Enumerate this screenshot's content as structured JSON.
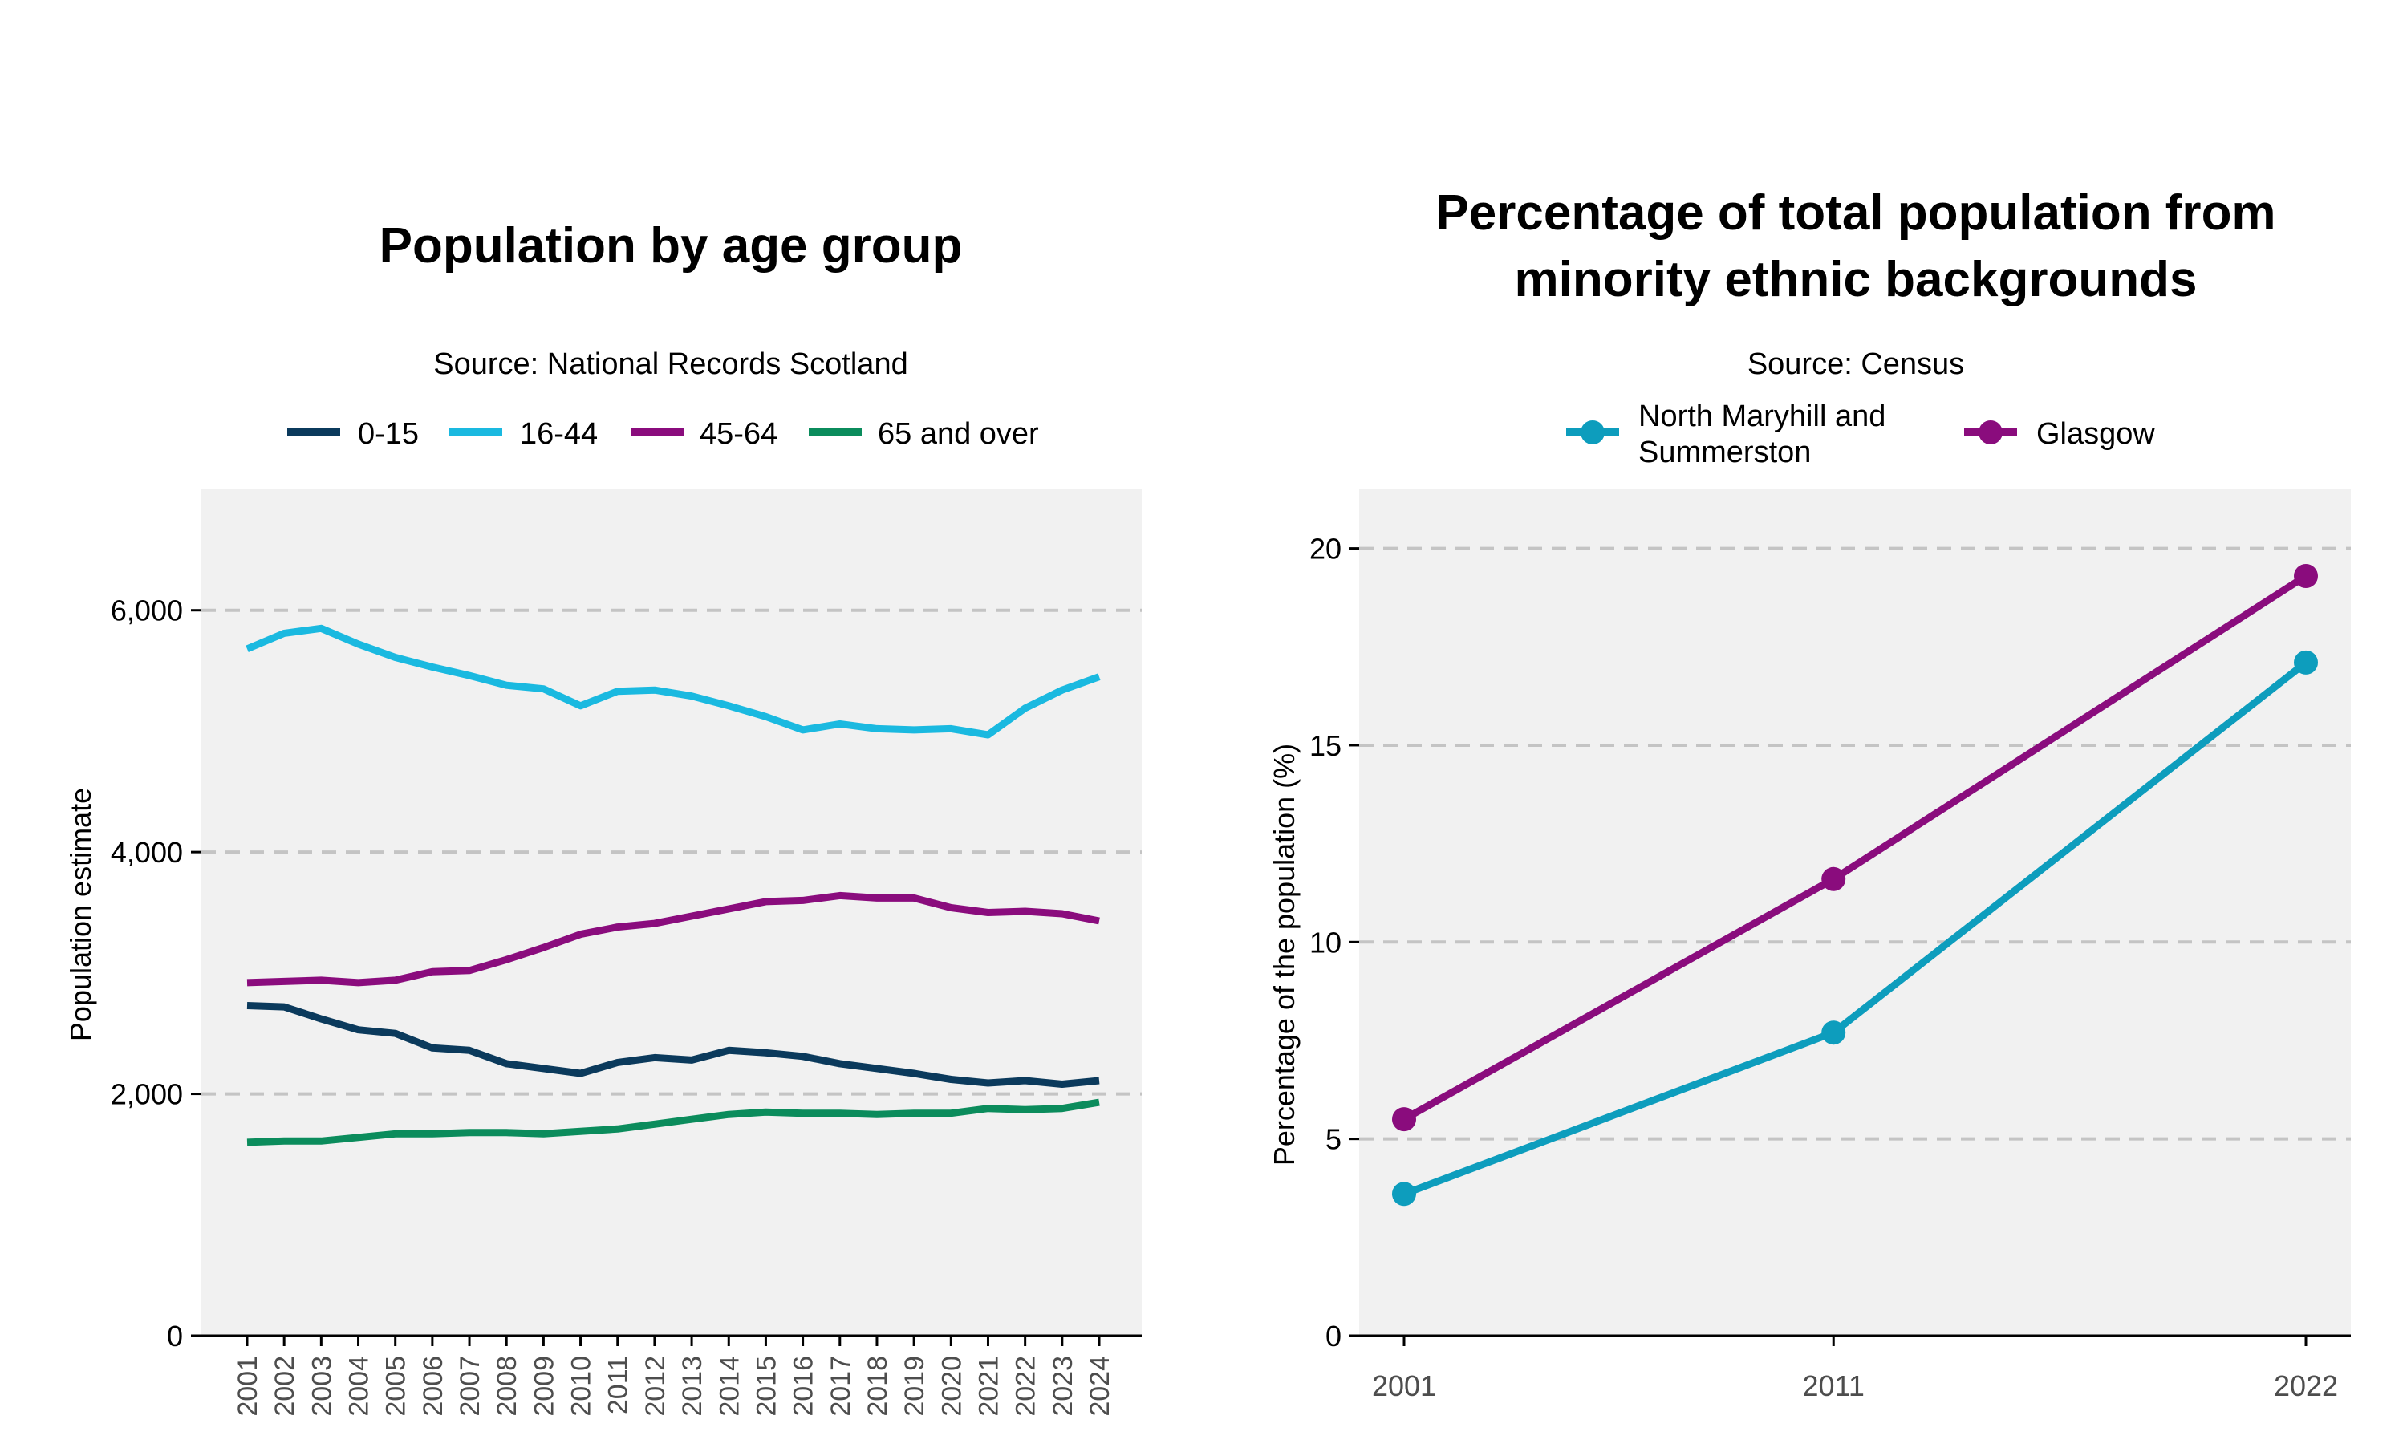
{
  "chart_data": [
    {
      "type": "line",
      "title": "Population by age group",
      "subtitle": "Source: National Records Scotland",
      "xlabel": "",
      "ylabel": "Population estimate",
      "ylim": [
        0,
        7000
      ],
      "yticks": [
        0,
        2000,
        4000,
        6000
      ],
      "ytick_labels": [
        "0",
        "2,000",
        "4,000",
        "6,000"
      ],
      "grid": "horizontal dashed",
      "legend_position": "top",
      "categories": [
        "2001",
        "2002",
        "2003",
        "2004",
        "2005",
        "2006",
        "2007",
        "2008",
        "2009",
        "2010",
        "2011",
        "2012",
        "2013",
        "2014",
        "2015",
        "2016",
        "2017",
        "2018",
        "2019",
        "2020",
        "2021",
        "2022",
        "2023",
        "2024"
      ],
      "series": [
        {
          "name": "0-15",
          "color": "#0b3a5c",
          "values": [
            2730,
            2720,
            2620,
            2530,
            2500,
            2380,
            2360,
            2250,
            2210,
            2170,
            2260,
            2300,
            2280,
            2360,
            2340,
            2310,
            2250,
            2210,
            2170,
            2120,
            2090,
            2110,
            2080,
            2110
          ]
        },
        {
          "name": "16-44",
          "color": "#1ab9e0",
          "values": [
            5680,
            5810,
            5850,
            5720,
            5610,
            5530,
            5460,
            5380,
            5350,
            5210,
            5330,
            5340,
            5290,
            5210,
            5120,
            5010,
            5060,
            5020,
            5010,
            5020,
            4970,
            5190,
            5340,
            5450
          ]
        },
        {
          "name": "45-64",
          "color": "#8a0c7d",
          "values": [
            2920,
            2930,
            2940,
            2920,
            2940,
            3010,
            3020,
            3110,
            3210,
            3320,
            3380,
            3410,
            3470,
            3530,
            3590,
            3600,
            3640,
            3620,
            3620,
            3540,
            3500,
            3510,
            3490,
            3430
          ]
        },
        {
          "name": "65 and over",
          "color": "#0b8c5c",
          "values": [
            1600,
            1610,
            1610,
            1640,
            1670,
            1670,
            1680,
            1680,
            1670,
            1690,
            1710,
            1750,
            1790,
            1830,
            1850,
            1840,
            1840,
            1830,
            1840,
            1840,
            1880,
            1870,
            1880,
            1930
          ]
        }
      ]
    },
    {
      "type": "line",
      "title": "Percentage of total population from minority ethnic backgrounds",
      "title_lines": [
        "Percentage of total population from",
        "minority ethnic backgrounds"
      ],
      "subtitle": "Source: Census",
      "xlabel": "",
      "ylabel": "Percentage of the population (%)",
      "ylim": [
        0,
        21.5
      ],
      "yticks": [
        0,
        5,
        10,
        15,
        20
      ],
      "ytick_labels": [
        "0",
        "5",
        "10",
        "15",
        "20"
      ],
      "grid": "horizontal dashed",
      "legend_position": "top",
      "x": [
        2001,
        2011,
        2022
      ],
      "x_labels": [
        "2001",
        "2011",
        "2022"
      ],
      "series": [
        {
          "name": "North Maryhill and Summerston",
          "name_lines": [
            "North Maryhill and",
            "Summerston"
          ],
          "color": "#0d9dbd",
          "values": [
            3.6,
            7.7,
            17.1
          ]
        },
        {
          "name": "Glasgow",
          "color": "#8a0c7d",
          "values": [
            5.5,
            11.6,
            19.3
          ]
        }
      ]
    }
  ]
}
